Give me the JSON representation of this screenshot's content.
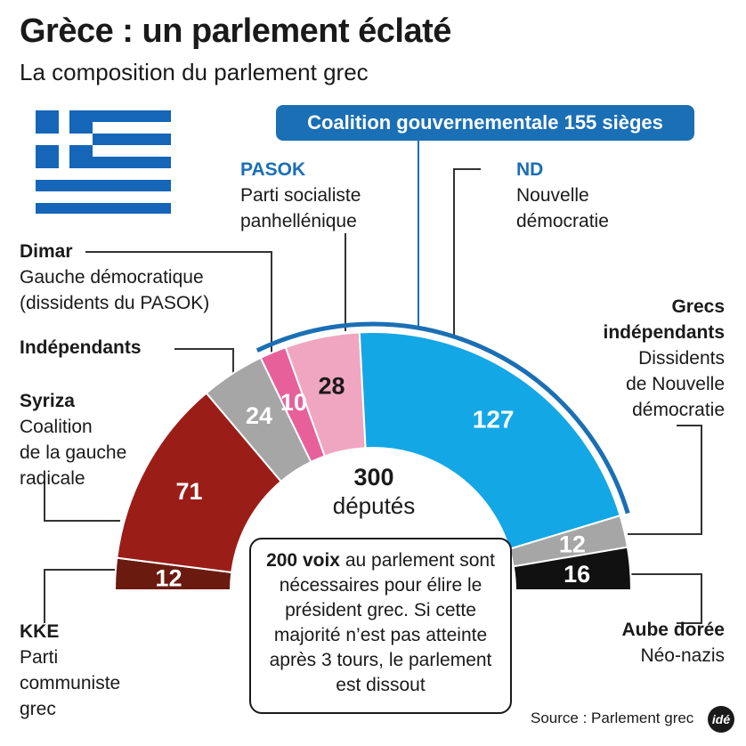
{
  "title": "Grèce : un parlement éclaté",
  "subtitle": "La composition du parlement grec",
  "coalition": {
    "label": "Coalition gouvernementale 155 sièges",
    "seats": 155
  },
  "total": {
    "value": "300",
    "label": "députés"
  },
  "note": {
    "bold": "200 voix",
    "rest": " au parlement sont nécessaires pour élire le président grec. Si cette majorité n’est pas atteinte après 3 tours, le parlement est dissout"
  },
  "source": "Source : Parlement grec",
  "logo": "idé",
  "chart_data": {
    "type": "pie",
    "subtype": "half-donut parliament",
    "total": 300,
    "series": [
      {
        "name": "KKE",
        "value": 12,
        "color": "#6b1a10",
        "description": "Parti communiste grec"
      },
      {
        "name": "Syriza",
        "value": 71,
        "color": "#9b1d17",
        "description": "Coalition de la gauche radicale"
      },
      {
        "name": "Indépendants",
        "value": 24,
        "color": "#a6a6a6",
        "description": ""
      },
      {
        "name": "Dimar",
        "value": 10,
        "color": "#e7609a",
        "description": "Gauche démocratique (dissidents du PASOK)"
      },
      {
        "name": "PASOK",
        "value": 28,
        "color": "#f0a6c0",
        "description": "Parti socialiste panhellénique"
      },
      {
        "name": "ND",
        "value": 127,
        "color": "#13a7e6",
        "description": "Nouvelle démocratie"
      },
      {
        "name": "Grecs indépendants",
        "value": 12,
        "color": "#a6a6a6",
        "description": "Dissidents de Nouvelle démocratie"
      },
      {
        "name": "Aube dorée",
        "value": 16,
        "color": "#111111",
        "description": "Néo-nazis"
      }
    ]
  },
  "labels": {
    "dimar": {
      "name": "Dimar",
      "desc": "Gauche démocratique\n(dissidents du PASOK)"
    },
    "indep": {
      "name": "Indépendants"
    },
    "syriza": {
      "name": "Syriza",
      "desc": "Coalition\nde la gauche\nradicale"
    },
    "kke": {
      "name": "KKE",
      "desc": "Parti\ncommuniste\ngrec"
    },
    "pasok": {
      "name": "PASOK",
      "desc": "Parti socialiste\npanhellénique"
    },
    "nd": {
      "name": "ND",
      "desc": "Nouvelle\ndémocratie"
    },
    "grecs": {
      "name": "Grecs\nindépendants",
      "desc": "Dissidents\nde Nouvelle\ndémocratie"
    },
    "aube": {
      "name": "Aube dorée",
      "desc": "Néo-nazis"
    }
  }
}
